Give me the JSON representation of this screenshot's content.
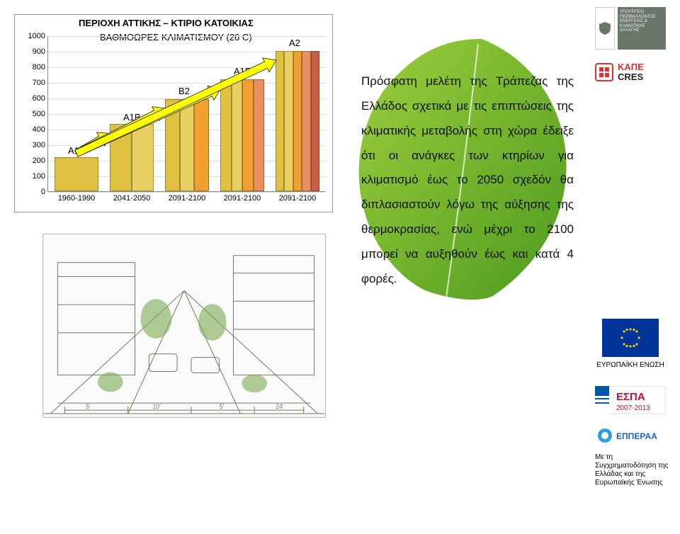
{
  "chart": {
    "type": "bar",
    "title": "ΠΕΡΙΟΧΗ ΑΤΤΙΚΗΣ – ΚΤΙΡΙΟ ΚΑΤΟΙΚΙΑΣ",
    "subtitle": "ΒΑΘΜΟΩΡΕΣ ΚΛΙΜΑΤΙΣΜΟΥ (26 C)",
    "ymin": 0,
    "ymax": 1000,
    "ystep": 100,
    "xcategories": [
      "1960-1990",
      "2041-2050",
      "2091-2100",
      "2091-2100",
      "2091-2100"
    ],
    "scenario_labels": [
      "Α1Β",
      "Α1Β",
      "Β2",
      "Α1Β",
      "Α2"
    ],
    "series_values": [
      220,
      430,
      590,
      720,
      900
    ],
    "bar_colors": [
      [
        "#e0c040"
      ],
      [
        "#e0c040",
        "#e8cf60"
      ],
      [
        "#e0c040",
        "#e8cf60",
        "#f0a030"
      ],
      [
        "#e0c040",
        "#e8cf60",
        "#f0a030",
        "#e89060"
      ],
      [
        "#e0c040",
        "#e8cf60",
        "#f0a030",
        "#e89060",
        "#c86048"
      ]
    ],
    "bar_group_width": 62,
    "bar_gap": 16,
    "grid_color": "#dddddd",
    "border_color": "#888888",
    "tick_fontsize": 11,
    "label_fontsize": 11,
    "title_fontsize": 13,
    "arrow_targets": [
      1,
      2,
      3,
      4
    ]
  },
  "paragraph": "Πρόσφατη μελέτη της Τράπεζας της Ελλάδος σχετικά με τις επιπτώσεις της κλιματικής μεταβολής στη χώρα έδειξε ότι οι ανάγκες των κτηρίων για κλιματισμό έως το 2050 σχεδόν θα διπλασιαστούν λόγω της αύξησης της θερμοκρασίας, ενώ μέχρι το 2100 μπορεί να αυξηθούν έως και κατά 4 φορές.",
  "leaf": {
    "fill_light": "#9dcf3c",
    "fill_dark": "#4e9a1f",
    "vein_color": "#ffffff"
  },
  "logos": {
    "ministry_lines": "ΥΠΟΥΡΓΕΙΟ ΠΕΡΙΒΑΛΛΟΝΤΟΣ ΕΝΕΡΓΕΙΑΣ & ΚΛΙΜΑΤΙΚΗΣ ΑΛΛΑΓΗΣ",
    "cres_top": "KAΠE",
    "cres_bot": "CRES",
    "eu_label": "ΕΥΡΩΠΑΪΚΗ ΕΝΩΣΗ",
    "espa_text": "ΕΣΠΑ",
    "espa_years": "2007-2013",
    "epperaa_text": "ΕΠΠΕΡΑΑ",
    "funding_note": "Με τη Συγχρηματοδότηση της Ελλάδας και της Ευρωπαϊκής Ένωσης",
    "eu_flag_bg": "#003399",
    "eu_star_color": "#ffcc00",
    "cres_color": "#e03030",
    "espa_bg1": "#c01030",
    "espa_bg2": "#ffffff",
    "epperaa_blue": "#2060c0"
  },
  "sketch": {
    "line_color": "#777766",
    "accent_green": "#7aa850",
    "note": "architectural street-perspective sketch of green urban block"
  }
}
